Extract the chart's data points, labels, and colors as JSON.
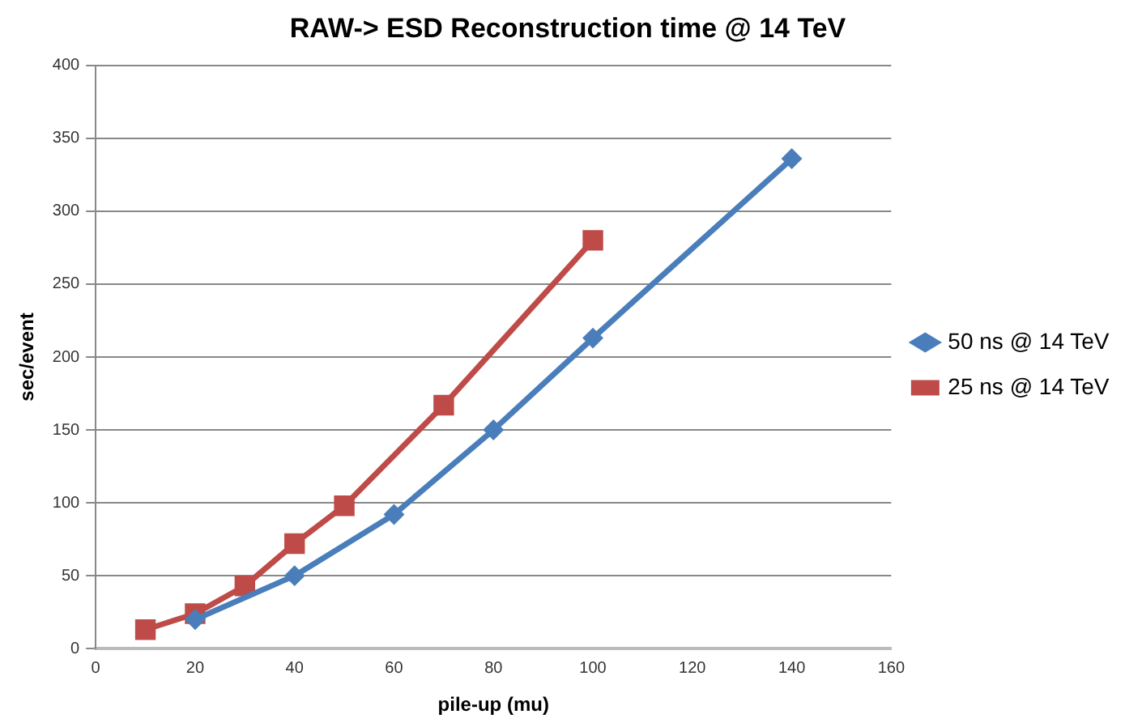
{
  "chart_data": {
    "type": "line",
    "title": "RAW-> ESD Reconstruction time @ 14 TeV",
    "xlabel": "pile-up (mu)",
    "ylabel": "sec/event",
    "series": [
      {
        "name": "50 ns @ 14 TeV",
        "color": "#4a7ebb",
        "marker": "diamond",
        "x": [
          20,
          40,
          60,
          80,
          100,
          140
        ],
        "values": [
          20,
          50,
          92,
          150,
          213,
          336
        ]
      },
      {
        "name": "25 ns @ 14 TeV",
        "color": "#be4b48",
        "marker": "square",
        "x": [
          10,
          20,
          30,
          40,
          50,
          70,
          100
        ],
        "values": [
          13,
          24,
          43,
          72,
          98,
          167,
          280
        ]
      }
    ],
    "xlim": [
      0,
      160
    ],
    "xticks": [
      0,
      20,
      40,
      60,
      80,
      100,
      120,
      140,
      160
    ],
    "ylim": [
      0,
      400
    ],
    "yticks": [
      0,
      50,
      100,
      150,
      200,
      250,
      300,
      350,
      400
    ],
    "grid": "y",
    "legend": "right",
    "line_style": "solid"
  }
}
